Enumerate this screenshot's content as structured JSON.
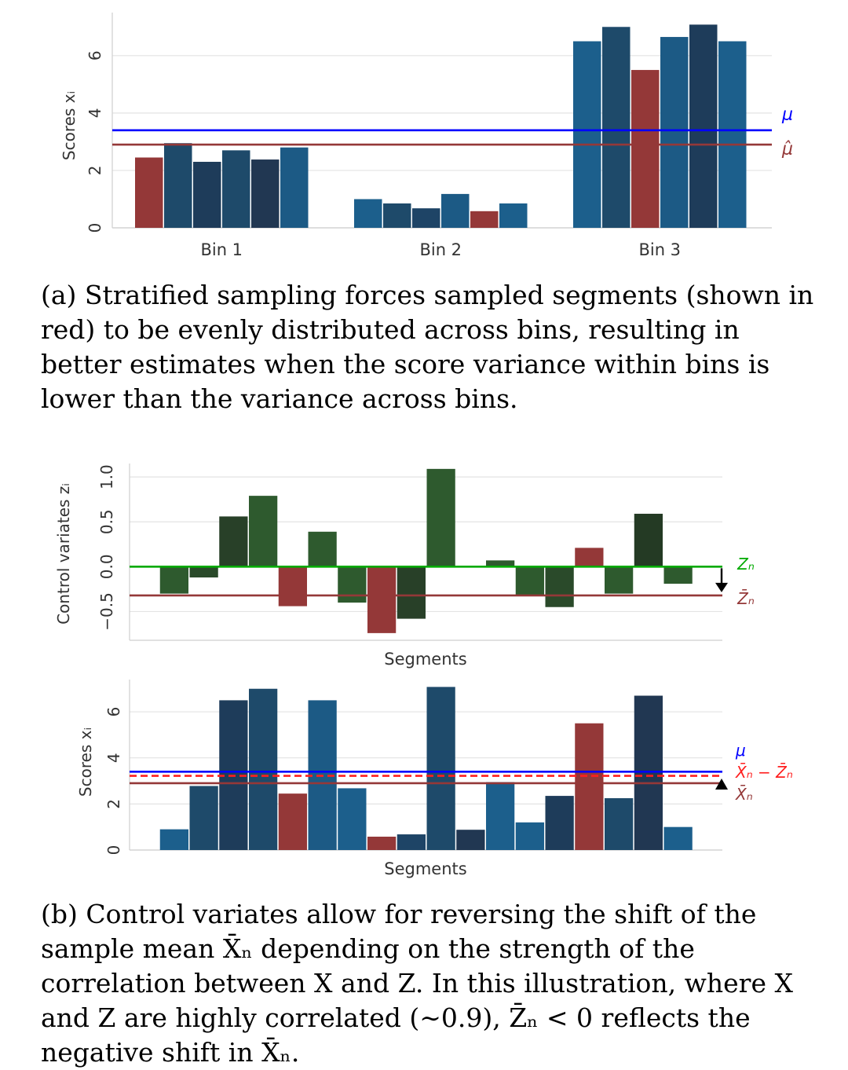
{
  "captions": {
    "a": "(a) Stratified sampling forces sampled segments (shown in red) to be evenly distributed across bins, resulting in better estimates when the score variance within bins is lower than the variance across bins.",
    "b": "(b) Control variates allow for reversing the shift of the sample mean X̄ₙ depending on the strength of the correlation between X and Z. In this illustration, where X and Z are highly correlated (∼0.9), Z̄ₙ < 0 reflects the negative shift in X̄ₙ."
  },
  "colors": {
    "red": "#943838",
    "blue_line": "#0000ff",
    "green_line": "#00aa00",
    "red_dashed": "#ff1f1f"
  },
  "chart_data": [
    {
      "id": "a",
      "type": "bar",
      "xlabel": "",
      "ylabel": "Scores xᵢ",
      "ylim": [
        0,
        7.5
      ],
      "yticks": [
        0,
        2,
        4,
        6
      ],
      "grid": true,
      "categories": [
        "Bin 1",
        "Bin 2",
        "Bin 3"
      ],
      "groups": [
        {
          "label": "Bin 1",
          "values": [
            2.45,
            2.95,
            2.3,
            2.7,
            2.38,
            2.8
          ],
          "colors": [
            "#943838",
            "#1e4a6a",
            "#1e3c5a",
            "#1e4a6a",
            "#213752",
            "#1c5a85"
          ]
        },
        {
          "label": "Bin 2",
          "values": [
            1.0,
            0.85,
            0.68,
            1.18,
            0.58,
            0.85
          ],
          "colors": [
            "#1c5f8c",
            "#1e4a6a",
            "#1e4466",
            "#1c5a85",
            "#943838",
            "#1c5f8c"
          ]
        },
        {
          "label": "Bin 3",
          "values": [
            6.5,
            7.0,
            5.5,
            6.65,
            7.08,
            6.5
          ],
          "colors": [
            "#1c5f8c",
            "#1e4a6a",
            "#943838",
            "#1c5a85",
            "#1e3c5a",
            "#1c5f8c"
          ]
        }
      ],
      "hlines": [
        {
          "name": "μ",
          "value": 3.4,
          "color": "#0000ff"
        },
        {
          "name": "μ̂",
          "value": 2.9,
          "color": "#943838"
        }
      ]
    },
    {
      "id": "b_top",
      "type": "bar",
      "xlabel": "Segments",
      "ylabel": "Control variates zᵢ",
      "ylim": [
        -0.82,
        1.15
      ],
      "yticks": [
        -0.5,
        0.0,
        0.5,
        1.0
      ],
      "ytick_labels": [
        "−0.5",
        "0.0",
        "0.5",
        "1.0"
      ],
      "grid": true,
      "values": [
        0,
        -0.3,
        -0.12,
        0.56,
        0.79,
        -0.44,
        0.39,
        -0.4,
        -0.74,
        -0.58,
        1.09,
        0,
        0.07,
        -0.32,
        -0.45,
        0.21,
        -0.3,
        0.59,
        -0.19,
        0
      ],
      "colors": [
        "#2e5a2e",
        "#2e5a2e",
        "#2a4a2a",
        "#284028",
        "#2e5a2e",
        "#943838",
        "#2e5a2e",
        "#2e5a2e",
        "#943838",
        "#284028",
        "#2e5a2e",
        "#2e5a2e",
        "#2e5a2e",
        "#2e5a2e",
        "#2a4a2a",
        "#943838",
        "#2e5a2e",
        "#243a24",
        "#2e5a2e",
        "#2e5a2e"
      ],
      "hlines": [
        {
          "name": "Zₙ",
          "value": 0.0,
          "color": "#00aa00"
        },
        {
          "name": "Z̄ₙ",
          "value": -0.32,
          "color": "#943838"
        }
      ],
      "arrow": "down"
    },
    {
      "id": "b_bottom",
      "type": "bar",
      "xlabel": "Segments",
      "ylabel": "Scores xᵢ",
      "ylim": [
        0,
        7.4
      ],
      "yticks": [
        0,
        2,
        4,
        6
      ],
      "grid": true,
      "values": [
        0,
        0.9,
        2.78,
        6.5,
        7.0,
        2.45,
        6.5,
        2.68,
        0.58,
        0.68,
        7.08,
        0.88,
        2.95,
        1.2,
        2.35,
        5.5,
        2.25,
        6.7,
        1.0,
        0
      ],
      "colors": [
        "#1c5f8c",
        "#1c5f8c",
        "#1e4a6a",
        "#1e3c5a",
        "#1e4a6a",
        "#943838",
        "#1c5a85",
        "#1c5f8c",
        "#943838",
        "#1e4466",
        "#1e4a6a",
        "#213752",
        "#1c5f8c",
        "#1c5f8c",
        "#1e3c5a",
        "#943838",
        "#1e4a6a",
        "#213752",
        "#1c5f8c",
        "#1c5f8c"
      ],
      "hlines": [
        {
          "name": "μ",
          "value": 3.4,
          "color": "#0000ff",
          "style": "solid"
        },
        {
          "name": "X̄ₙ − Z̄ₙ",
          "value": 3.22,
          "color": "#ff1f1f",
          "style": "dashed"
        },
        {
          "name": "X̄ₙ",
          "value": 2.9,
          "color": "#943838",
          "style": "solid"
        }
      ],
      "arrow": "up"
    }
  ]
}
